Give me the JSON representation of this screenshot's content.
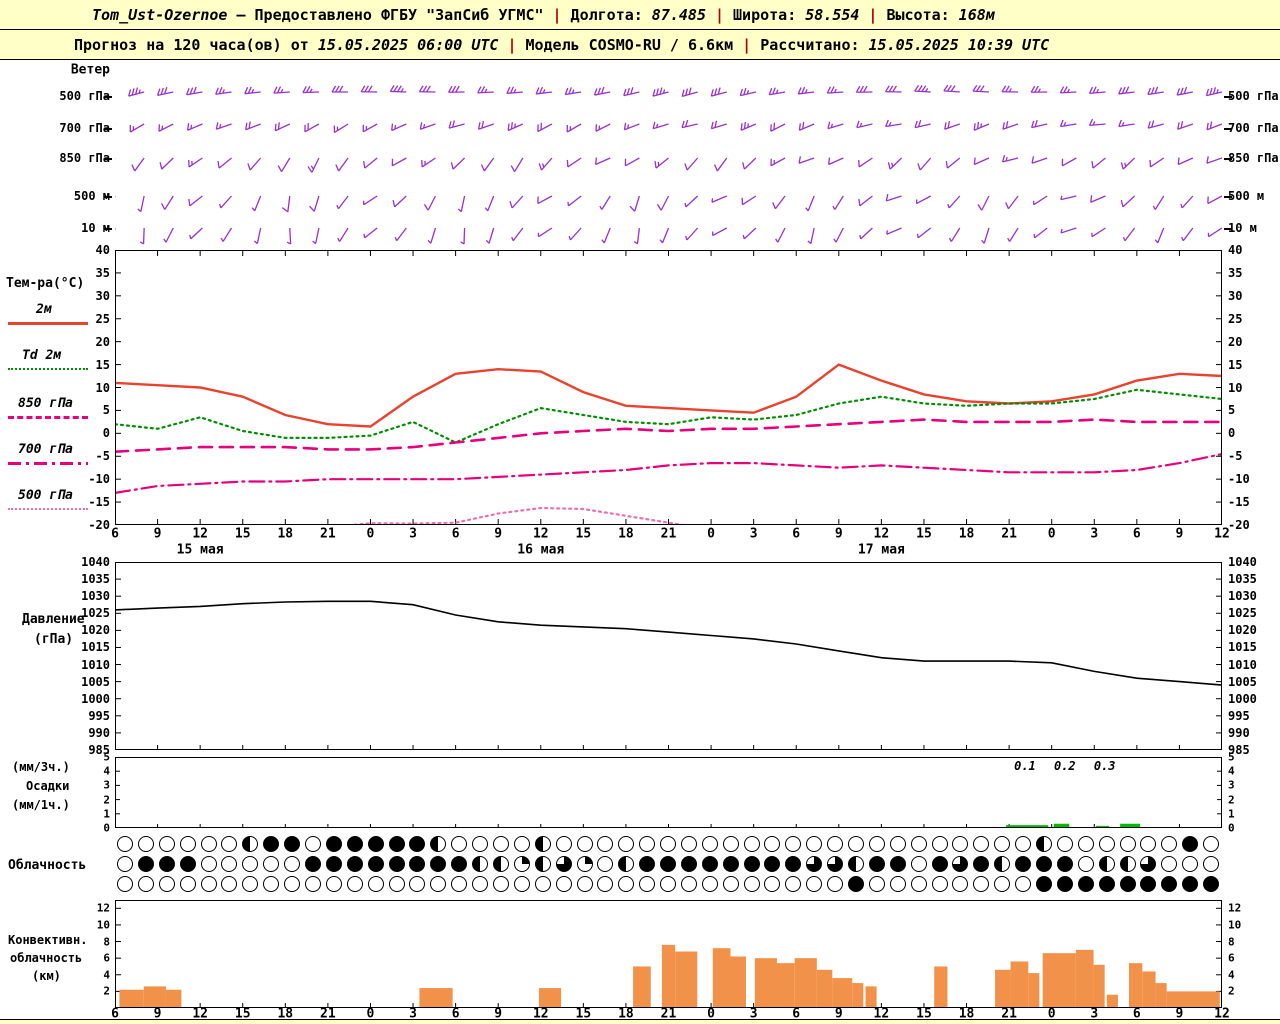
{
  "header": {
    "station": "Tom_Ust-Ozernoe",
    "provider": "— Предоставлено ФГБУ \"ЗапСиб УГМС\"",
    "sep": "|",
    "lon_label": "Долгота:",
    "lon_value": "87.485",
    "lat_label": "Широта:",
    "lat_value": "58.554",
    "alt_label": "Высота:",
    "alt_value": "168м",
    "forecast_prefix": "Прогноз на 120 часа(ов) от",
    "run_time": "15.05.2025 06:00 UTC",
    "model_label": "Модель",
    "model_value": "COSMO-RU / 6.6км",
    "calc_label": "Рассчитано:",
    "calc_time": "15.05.2025 10:39 UTC"
  },
  "panels": {
    "wind": {
      "title": "Ветер",
      "levels": [
        "500 гПа",
        "700 гПа",
        "850 гПа",
        "500 м",
        "10 м"
      ]
    },
    "temp": {
      "title": "Тем-ра(°C)",
      "legend": [
        {
          "label": "2м"
        },
        {
          "label": "Td 2м"
        },
        {
          "label": "850 гПа"
        },
        {
          "label": "700 гПа"
        },
        {
          "label": "500 гПа"
        }
      ]
    },
    "pressure": {
      "title_line1": "Давление",
      "title_line2": "(гПа)"
    },
    "precip": {
      "label1": "(мм/3ч.)",
      "label2": "Осадки",
      "label3": "(мм/1ч.)"
    },
    "cloud": {
      "title": "Облачность"
    },
    "conv": {
      "title_line1": "Конвективн.",
      "title_line2": "облачность",
      "title_line3": "(км)"
    }
  },
  "colors": {
    "header_bg": "#ffffc8",
    "separator": "#b00000",
    "barb": "#9a30d0",
    "temp_2m": "#e8432e",
    "dewpoint": "#008f00",
    "magenta": "#e6007e",
    "pink": "#ee6fae",
    "pressure": "#000000",
    "precip": "#00bb00",
    "convective": "#f2924a"
  },
  "chart_data": [
    {
      "type": "line",
      "name": "temperature",
      "title": "Тем-ра(°C)",
      "x_tick_labels": [
        "6",
        "9",
        "12",
        "15",
        "18",
        "21",
        "0",
        "3",
        "6",
        "9",
        "12",
        "15",
        "18",
        "21",
        "0",
        "3",
        "6",
        "9",
        "12",
        "15",
        "18",
        "21",
        "0",
        "3",
        "6",
        "9",
        "12"
      ],
      "date_labels": [
        {
          "label": "15 мая",
          "tick_index": 2
        },
        {
          "label": "16 мая",
          "tick_index": 10
        },
        {
          "label": "17 мая",
          "tick_index": 18
        }
      ],
      "ylim": [
        -20,
        40
      ],
      "yticks": [
        40,
        35,
        30,
        25,
        20,
        15,
        10,
        5,
        0,
        -5,
        -10,
        -15,
        -20
      ],
      "series": [
        {
          "name": "2м",
          "color": "#e8432e",
          "dash": "solid",
          "width": 2.4,
          "values": [
            11,
            10.5,
            10,
            8,
            4,
            2,
            1.5,
            8,
            13,
            14,
            13.5,
            9,
            6,
            5.5,
            5,
            4.5,
            8,
            15,
            11.5,
            8.5,
            7,
            6.5,
            7,
            8.5,
            11.5,
            13,
            12.5
          ]
        },
        {
          "name": "Td 2м",
          "color": "#008f00",
          "dash": "dotted",
          "width": 2.2,
          "values": [
            2,
            1,
            3.5,
            0.5,
            -1,
            -1,
            -0.5,
            2.5,
            -2,
            2,
            5.5,
            4,
            2.5,
            2,
            3.5,
            3,
            4,
            6.5,
            8,
            6.5,
            6,
            6.5,
            6.5,
            7.5,
            9.5,
            8.5,
            7.5
          ]
        },
        {
          "name": "850 гПа",
          "color": "#e6007e",
          "dash": "dash",
          "width": 2.6,
          "values": [
            -4,
            -3.5,
            -3,
            -3,
            -3,
            -3.5,
            -3.5,
            -3,
            -2,
            -1,
            0,
            0.5,
            1,
            0.5,
            1,
            1,
            1.5,
            2,
            2.5,
            3,
            2.5,
            2.5,
            2.5,
            3,
            2.5,
            2.5,
            2.5
          ]
        },
        {
          "name": "700 гПа",
          "color": "#e6007e",
          "dash": "dashdot",
          "width": 2.2,
          "values": [
            -13,
            -11.5,
            -11,
            -10.5,
            -10.5,
            -10,
            -10,
            -10,
            -10,
            -9.5,
            -9,
            -8.5,
            -8,
            -7,
            -6.5,
            -6.5,
            -7,
            -7.5,
            -7,
            -7.5,
            -8,
            -8.5,
            -8.5,
            -8.5,
            -8,
            -6.5,
            -4.5
          ]
        },
        {
          "name": "500 гПа",
          "color": "#ee6fae",
          "dash": "dotted",
          "width": 2.2,
          "values": [
            -22,
            -22,
            -22,
            -21,
            -20.5,
            -20.5,
            -19.6,
            -19.7,
            -19.5,
            -17.5,
            -16.3,
            -16.5,
            -18,
            -19.5,
            -21,
            -22,
            -22,
            -22,
            -22,
            -22,
            -22,
            -22,
            -22,
            -22,
            -22,
            -22,
            -22
          ]
        }
      ]
    },
    {
      "type": "line",
      "name": "pressure",
      "ylabel": "Давление (гПа)",
      "ylim": [
        985,
        1040
      ],
      "yticks": [
        1040,
        1035,
        1030,
        1025,
        1020,
        1015,
        1010,
        1005,
        1000,
        995,
        990,
        985
      ],
      "color": "#000000",
      "values": [
        1026,
        1026.5,
        1027,
        1027.8,
        1028.3,
        1028.5,
        1028.5,
        1027.5,
        1024.5,
        1022.5,
        1021.5,
        1021,
        1020.5,
        1019.5,
        1018.5,
        1017.5,
        1016,
        1014,
        1012,
        1011,
        1011,
        1011,
        1010.5,
        1008,
        1006,
        1005,
        1004
      ]
    },
    {
      "type": "bar",
      "name": "precip",
      "ylabel": "Осадки (мм/3ч.) (мм/1ч.)",
      "ylim": [
        0,
        5
      ],
      "yticks": [
        5,
        4,
        3,
        2,
        1,
        0
      ],
      "color": "#00bb00",
      "bars": [
        [
          0.805,
          0.038,
          0.2
        ],
        [
          0.848,
          0.014,
          0.3
        ],
        [
          0.886,
          0.012,
          0.15
        ],
        [
          0.908,
          0.018,
          0.3
        ]
      ],
      "annotations": [
        {
          "text": "0.1",
          "xf": 0.822
        },
        {
          "text": "0.2",
          "xf": 0.858
        },
        {
          "text": "0.3",
          "xf": 0.894
        }
      ]
    },
    {
      "type": "heatmap",
      "name": "cloudiness",
      "title": "Облачность",
      "symbol_key": {
        "o": "ясно 0/8",
        "q": "1/4",
        "h": "1/2",
        "t": "3/4",
        "f": "сплошная"
      },
      "rows": [
        "oooooohffofffffhoooohooooooooooooooooooooooohoooooofo",
        "offfoooooffffffffhhqhtqohfffffffftthffoftfhfffohhtooo",
        "ooooooooooooooooooooooooooooooooooofoooooooofffffffff"
      ]
    },
    {
      "type": "bar",
      "name": "convective",
      "ylabel": "Конвективн. облачность (км)",
      "ylim": [
        0,
        13
      ],
      "yticks": [
        12,
        10,
        8,
        6,
        4,
        2
      ],
      "color": "#f2924a",
      "bars": [
        [
          0.004,
          0.022,
          2.2
        ],
        [
          0.026,
          0.02,
          2.6
        ],
        [
          0.046,
          0.014,
          2.2
        ],
        [
          0.275,
          0.03,
          2.4
        ],
        [
          0.383,
          0.02,
          2.4
        ],
        [
          0.468,
          0.016,
          5.0
        ],
        [
          0.494,
          0.012,
          7.6
        ],
        [
          0.506,
          0.02,
          6.8
        ],
        [
          0.54,
          0.016,
          7.2
        ],
        [
          0.556,
          0.014,
          6.2
        ],
        [
          0.578,
          0.02,
          6.0
        ],
        [
          0.598,
          0.016,
          5.4
        ],
        [
          0.614,
          0.02,
          6.0
        ],
        [
          0.634,
          0.014,
          4.6
        ],
        [
          0.648,
          0.018,
          3.6
        ],
        [
          0.666,
          0.01,
          3.0
        ],
        [
          0.678,
          0.01,
          2.6
        ],
        [
          0.74,
          0.012,
          5.0
        ],
        [
          0.795,
          0.014,
          4.6
        ],
        [
          0.809,
          0.016,
          5.6
        ],
        [
          0.825,
          0.01,
          4.2
        ],
        [
          0.838,
          0.03,
          6.6
        ],
        [
          0.868,
          0.016,
          7.0
        ],
        [
          0.884,
          0.01,
          5.2
        ],
        [
          0.896,
          0.01,
          1.6
        ],
        [
          0.916,
          0.012,
          5.4
        ],
        [
          0.928,
          0.012,
          4.4
        ],
        [
          0.94,
          0.01,
          3.0
        ],
        [
          0.95,
          0.048,
          2.0
        ]
      ]
    },
    {
      "type": "barbs",
      "name": "wind",
      "title": "Ветер",
      "color": "#9a30d0",
      "levels": [
        {
          "name": "500 гПа",
          "dirs": [
            252,
            255,
            258,
            260,
            262,
            264,
            266,
            268,
            270,
            271,
            272,
            271,
            269,
            267,
            265,
            263,
            261,
            259,
            257,
            255,
            254,
            255,
            257,
            260,
            263,
            266,
            269,
            271,
            273,
            274,
            273,
            271,
            269,
            267,
            265,
            263,
            261,
            259,
            257
          ],
          "spds": [
            35,
            35,
            30,
            30,
            28,
            25,
            25,
            27,
            30,
            32,
            35,
            33,
            30,
            28,
            25,
            25,
            27,
            30,
            33,
            35,
            33,
            30,
            28,
            25,
            25,
            27,
            30,
            32,
            35,
            33,
            30,
            28,
            25,
            26,
            28,
            30,
            32,
            34,
            35
          ]
        },
        {
          "name": "700 гПа",
          "dirs": [
            242,
            240,
            243,
            247,
            251,
            249,
            245,
            241,
            238,
            241,
            246,
            251,
            255,
            251,
            246,
            242,
            240,
            243,
            249,
            253,
            257,
            253,
            247,
            243,
            247,
            253,
            257,
            261,
            257,
            251,
            247,
            251,
            257,
            261,
            265,
            261,
            255,
            251,
            249
          ],
          "spds": [
            20,
            18,
            16,
            15,
            18,
            21,
            24,
            22,
            19,
            17,
            15,
            17,
            20,
            23,
            25,
            22,
            19,
            17,
            15,
            17,
            20,
            23,
            25,
            22,
            20,
            17,
            15,
            17,
            20,
            23,
            25,
            23,
            20,
            18,
            16,
            17,
            20,
            22,
            24
          ]
        },
        {
          "name": "850 гПа",
          "dirs": [
            222,
            216,
            226,
            236,
            231,
            221,
            211,
            206,
            216,
            231,
            241,
            236,
            226,
            216,
            211,
            221,
            236,
            246,
            241,
            231,
            221,
            216,
            226,
            241,
            251,
            246,
            236,
            226,
            221,
            231,
            246,
            256,
            251,
            241,
            231,
            226,
            236,
            246,
            251
          ],
          "spds": [
            12,
            10,
            14,
            16,
            12,
            10,
            14,
            16,
            12,
            10,
            14,
            16,
            12,
            10,
            14,
            16,
            12,
            10,
            14,
            16,
            12,
            10,
            14,
            16,
            12,
            10,
            14,
            16,
            12,
            10,
            14,
            16,
            12,
            10,
            14,
            16,
            12,
            10,
            14
          ]
        },
        {
          "name": "500 м",
          "dirs": [
            202,
            192,
            212,
            232,
            222,
            202,
            187,
            197,
            217,
            237,
            227,
            207,
            192,
            202,
            222,
            242,
            232,
            212,
            197,
            207,
            227,
            247,
            237,
            217,
            202,
            212,
            232,
            252,
            242,
            222,
            207,
            217,
            237,
            257,
            247,
            227,
            212,
            222,
            242
          ],
          "spds": [
            8,
            7,
            10,
            11,
            8,
            7,
            10,
            11,
            8,
            7,
            10,
            11,
            8,
            7,
            10,
            11,
            8,
            7,
            10,
            11,
            8,
            7,
            10,
            11,
            8,
            7,
            10,
            11,
            8,
            7,
            10,
            11,
            8,
            7,
            10,
            11,
            8,
            7,
            10
          ]
        },
        {
          "name": "10 м",
          "dirs": [
            192,
            182,
            207,
            227,
            212,
            192,
            177,
            192,
            212,
            232,
            217,
            197,
            182,
            197,
            217,
            237,
            222,
            202,
            187,
            202,
            222,
            242,
            227,
            207,
            192,
            207,
            227,
            247,
            232,
            212,
            197,
            212,
            232,
            252,
            237,
            217,
            202,
            217,
            237
          ],
          "spds": [
            5,
            5,
            7,
            8,
            5,
            5,
            7,
            8,
            5,
            5,
            7,
            8,
            5,
            5,
            7,
            8,
            5,
            5,
            7,
            8,
            5,
            5,
            7,
            8,
            5,
            5,
            7,
            8,
            5,
            5,
            7,
            8,
            5,
            5,
            7,
            8,
            5,
            5,
            7
          ]
        }
      ]
    }
  ]
}
